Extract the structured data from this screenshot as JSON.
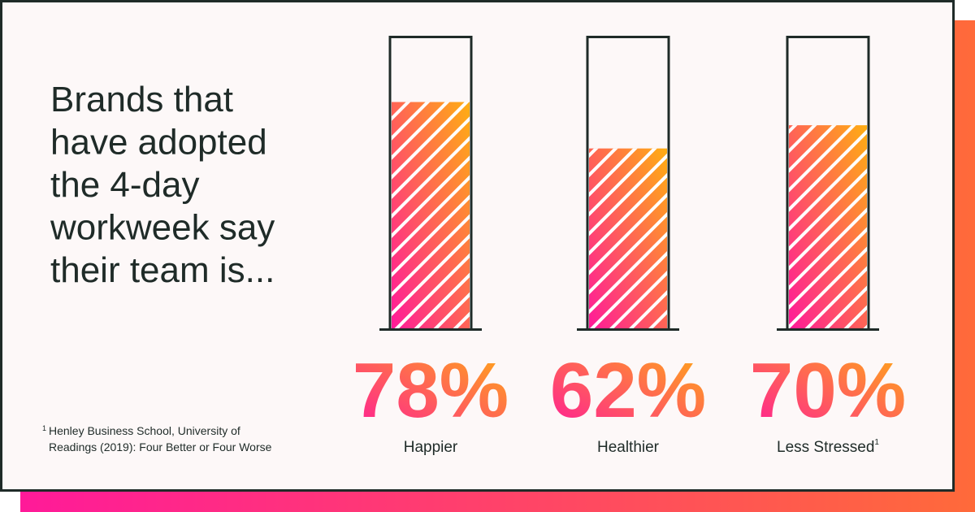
{
  "chart_data": {
    "type": "bar",
    "title": [
      "Brands that",
      "have adopted",
      "the 4-day",
      "workweek say",
      "their team is..."
    ],
    "categories": [
      "Happier",
      "Healthier",
      "Less Stressed"
    ],
    "category_footnote_refs": [
      null,
      null,
      "1"
    ],
    "values": [
      78,
      62,
      70
    ],
    "value_labels": [
      "78%",
      "62%",
      "70%"
    ],
    "gradient": [
      "#ff1a99",
      "#ffae12"
    ],
    "ylim": [
      0,
      100
    ],
    "footnote": {
      "marker": "1",
      "lines": [
        "Henley Business School, University of",
        "Readings (2019): Four Better or Four Worse"
      ]
    }
  }
}
